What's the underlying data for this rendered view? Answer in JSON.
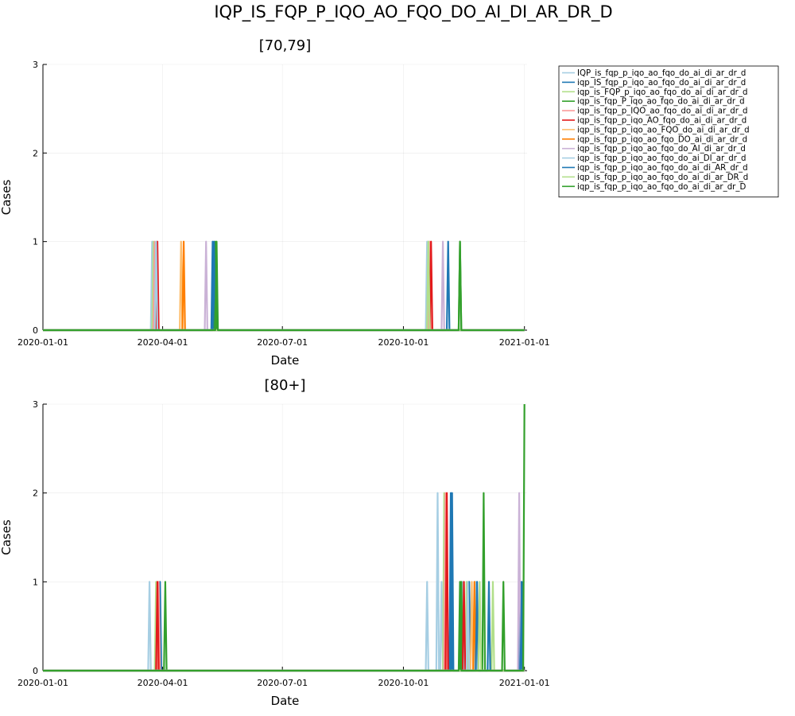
{
  "figure": {
    "title": "IQP_IS_FQP_P_IQO_AO_FQO_DO_AI_DI_AR_DR_D"
  },
  "chart_data": [
    {
      "type": "line",
      "title": "[70,79]",
      "xlabel": "Date",
      "ylabel": "Cases",
      "xlim": [
        "2020-01-01",
        "2021-01-03"
      ],
      "ylim": [
        0,
        3
      ],
      "xticks": [
        "2020-01-01",
        "2020-04-01",
        "2020-07-01",
        "2020-10-01",
        "2021-01-01"
      ],
      "yticks": [
        0,
        1,
        2,
        3
      ],
      "grid": true,
      "legend": "outside-right",
      "series": [
        {
          "name": "IQP_is_fqp_p_iqo_ao_fqo_do_ai_di_ar_dr_d",
          "color": "#a6cee3",
          "points": [
            [
              "2020-03-24",
              1
            ],
            [
              "2020-10-19",
              1
            ]
          ]
        },
        {
          "name": "iqp_IS_fqp_p_iqo_ao_fqo_do_ai_di_ar_dr_d",
          "color": "#1f78b4",
          "points": [
            [
              "2020-05-09",
              1
            ],
            [
              "2020-11-04",
              1
            ]
          ]
        },
        {
          "name": "iqp_is_FQP_p_iqo_ao_fqo_do_ai_di_ar_dr_d",
          "color": "#b2df8a",
          "points": [
            [
              "2020-03-25",
              1
            ],
            [
              "2020-10-20",
              1
            ]
          ]
        },
        {
          "name": "iqp_is_fqp_P_iqo_ao_fqo_do_ai_di_ar_dr_d",
          "color": "#33a02c",
          "points": [
            [
              "2020-05-11",
              1
            ],
            [
              "2020-11-13",
              1
            ]
          ]
        },
        {
          "name": "iqp_is_fqp_p_IQO_ao_fqo_do_ai_di_ar_dr_d",
          "color": "#fb9a99",
          "points": [
            [
              "2020-03-26",
              1
            ],
            [
              "2020-10-21",
              1
            ]
          ]
        },
        {
          "name": "iqp_is_fqp_p_iqo_AO_fqo_do_ai_di_ar_dr_d",
          "color": "#e31a1c",
          "points": [
            [
              "2020-03-28",
              1
            ],
            [
              "2020-10-22",
              1
            ]
          ]
        },
        {
          "name": "iqp_is_fqp_p_iqo_ao_FQO_do_ai_di_ar_dr_d",
          "color": "#fdbf6f",
          "points": [
            [
              "2020-04-15",
              1
            ]
          ]
        },
        {
          "name": "iqp_is_fqp_p_iqo_ao_fqo_DO_ai_di_ar_dr_d",
          "color": "#ff7f00",
          "points": [
            [
              "2020-04-17",
              1
            ]
          ]
        },
        {
          "name": "iqp_is_fqp_p_iqo_ao_fqo_do_AI_di_ar_dr_d",
          "color": "#cab2d6",
          "points": [
            [
              "2020-05-04",
              1
            ],
            [
              "2020-10-31",
              1
            ]
          ]
        },
        {
          "name": "iqp_is_fqp_p_iqo_ao_fqo_do_ai_DI_ar_dr_d",
          "color": "#a6cee3",
          "points": [
            [
              "2020-03-27",
              1
            ]
          ]
        },
        {
          "name": "iqp_is_fqp_p_iqo_ao_fqo_do_ai_di_AR_dr_d",
          "color": "#1f78b4",
          "points": [
            [
              "2020-05-10",
              1
            ]
          ]
        },
        {
          "name": "iqp_is_fqp_p_iqo_ao_fqo_do_ai_di_ar_DR_d",
          "color": "#b2df8a",
          "points": [
            [
              "2020-10-20",
              1
            ]
          ]
        },
        {
          "name": "iqp_is_fqp_p_iqo_ao_fqo_do_ai_di_ar_dr_D",
          "color": "#33a02c",
          "points": [
            [
              "2020-05-12",
              1
            ],
            [
              "2020-11-13",
              1
            ]
          ]
        }
      ]
    },
    {
      "type": "line",
      "title": "[80+]",
      "xlabel": "Date",
      "ylabel": "Cases",
      "xlim": [
        "2020-01-01",
        "2021-01-03"
      ],
      "ylim": [
        0,
        3
      ],
      "xticks": [
        "2020-01-01",
        "2020-04-01",
        "2020-07-01",
        "2020-10-01",
        "2021-01-01"
      ],
      "yticks": [
        0,
        1,
        2,
        3
      ],
      "grid": true,
      "series": [
        {
          "name": "IQP_is_fqp_p_iqo_ao_fqo_do_ai_di_ar_dr_d",
          "color": "#a6cee3",
          "points": [
            [
              "2020-03-22",
              1
            ],
            [
              "2020-10-19",
              1
            ],
            [
              "2020-10-27",
              2
            ],
            [
              "2020-10-30",
              1
            ],
            [
              "2020-11-15",
              1
            ],
            [
              "2020-11-25",
              1
            ]
          ]
        },
        {
          "name": "iqp_IS_fqp_p_iqo_ao_fqo_do_ai_di_ar_dr_d",
          "color": "#1f78b4",
          "points": [
            [
              "2020-03-30",
              1
            ],
            [
              "2020-11-06",
              2
            ],
            [
              "2020-11-20",
              1
            ],
            [
              "2020-12-29",
              1
            ]
          ]
        },
        {
          "name": "iqp_is_FQP_p_iqo_ao_fqo_do_ai_di_ar_dr_d",
          "color": "#b2df8a",
          "points": [
            [
              "2020-03-27",
              1
            ],
            [
              "2020-11-01",
              2
            ],
            [
              "2020-11-18",
              1
            ],
            [
              "2020-12-08",
              1
            ]
          ]
        },
        {
          "name": "iqp_is_fqp_P_iqo_ao_fqo_do_ai_di_ar_dr_d",
          "color": "#33a02c",
          "points": [
            [
              "2020-04-03",
              1
            ],
            [
              "2020-11-14",
              1
            ],
            [
              "2020-12-01",
              2
            ]
          ]
        },
        {
          "name": "iqp_is_fqp_p_IQO_ao_fqo_do_ai_di_ar_dr_d",
          "color": "#fb9a99",
          "points": [
            [
              "2020-03-29",
              1
            ],
            [
              "2020-11-02",
              2
            ]
          ]
        },
        {
          "name": "iqp_is_fqp_p_iqo_AO_fqo_do_ai_di_ar_dr_d",
          "color": "#e31a1c",
          "points": [
            [
              "2020-03-28",
              1
            ],
            [
              "2020-11-03",
              2
            ],
            [
              "2020-11-16",
              1
            ]
          ]
        },
        {
          "name": "iqp_is_fqp_p_iqo_ao_FQO_do_ai_di_ar_dr_d",
          "color": "#fdbf6f",
          "points": [
            [
              "2020-11-22",
              1
            ]
          ]
        },
        {
          "name": "iqp_is_fqp_p_iqo_ao_fqo_DO_ai_di_ar_dr_d",
          "color": "#ff7f00",
          "points": [
            [
              "2020-11-24",
              1
            ]
          ]
        },
        {
          "name": "iqp_is_fqp_p_iqo_ao_fqo_do_AI_di_ar_dr_d",
          "color": "#cab2d6",
          "points": [
            [
              "2020-12-28",
              2
            ]
          ]
        },
        {
          "name": "iqp_is_fqp_p_iqo_ao_fqo_do_ai_DI_ar_dr_d",
          "color": "#a6cee3",
          "points": [
            [
              "2020-11-19",
              1
            ]
          ]
        },
        {
          "name": "iqp_is_fqp_p_iqo_ao_fqo_do_ai_di_AR_dr_d",
          "color": "#1f78b4",
          "points": [
            [
              "2020-11-07",
              2
            ],
            [
              "2020-11-26",
              1
            ],
            [
              "2020-12-05",
              1
            ],
            [
              "2020-12-30",
              1
            ]
          ]
        },
        {
          "name": "iqp_is_fqp_p_iqo_ao_fqo_do_ai_di_ar_DR_d",
          "color": "#b2df8a",
          "points": [
            [
              "2020-11-28",
              1
            ]
          ]
        },
        {
          "name": "iqp_is_fqp_p_iqo_ao_fqo_do_ai_di_ar_dr_D",
          "color": "#33a02c",
          "points": [
            [
              "2020-11-13",
              1
            ],
            [
              "2020-12-16",
              1
            ],
            [
              "2021-01-01",
              3
            ]
          ]
        }
      ]
    }
  ]
}
